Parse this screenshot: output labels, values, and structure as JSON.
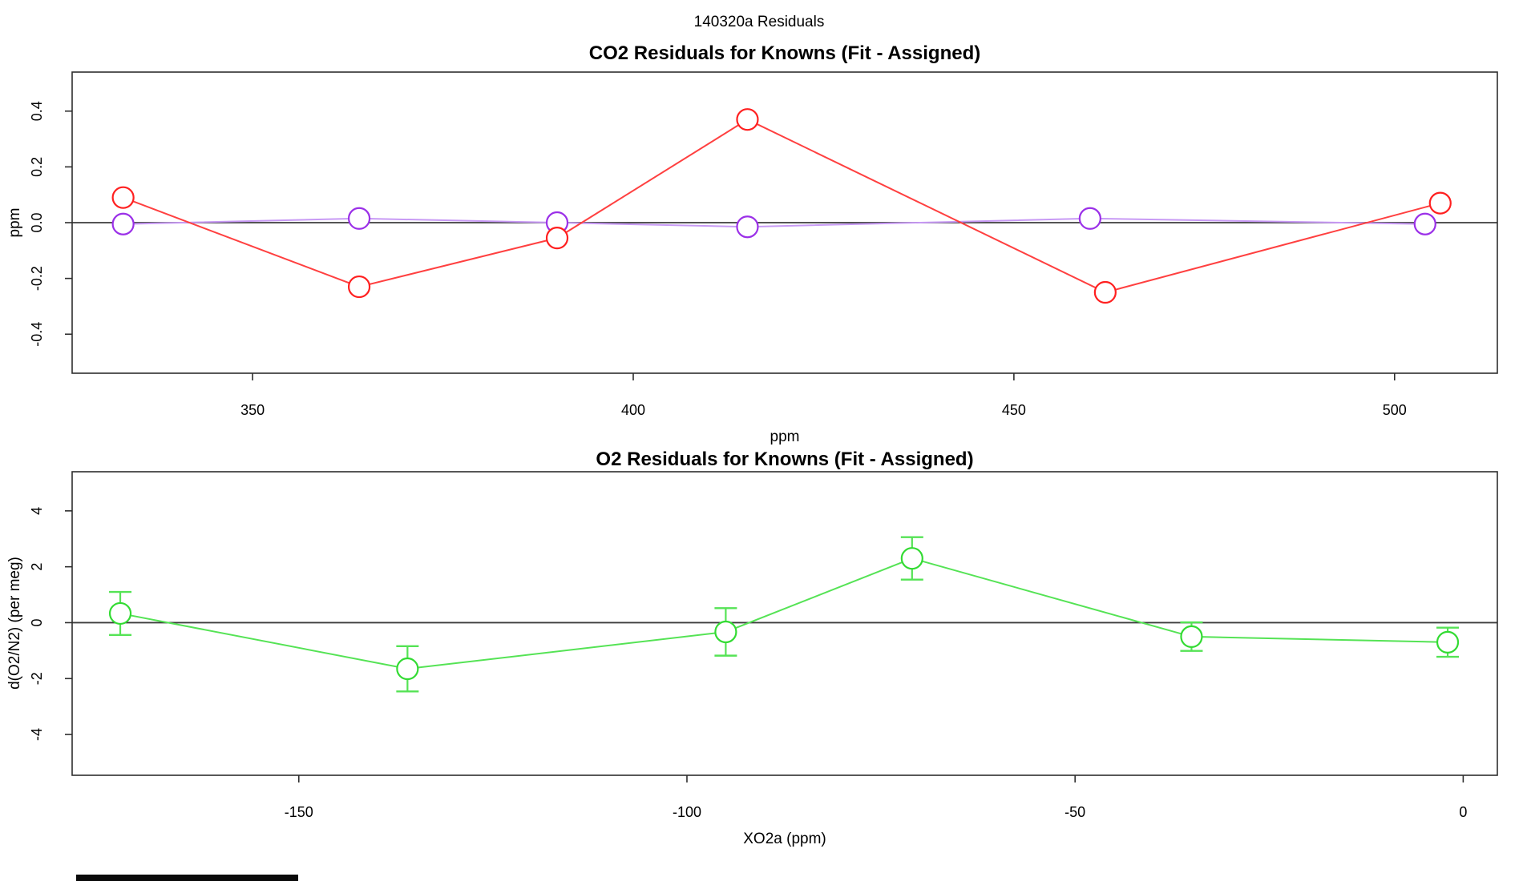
{
  "page": {
    "main_title": "140320a  Residuals",
    "background_color": "#ffffff",
    "frame_color": "#2e2e2e",
    "zero_line_color": "#3c3c3c"
  },
  "chart_data": [
    {
      "type": "line",
      "title": "CO2 Residuals for Knowns (Fit - Assigned)",
      "xlabel": "ppm",
      "ylabel": "ppm",
      "xlim": [
        326.3,
        513.5
      ],
      "ylim": [
        -0.54,
        0.54
      ],
      "xticks": [
        350,
        400,
        450,
        500
      ],
      "xtick_labels": [
        "350",
        "400",
        "450",
        "500"
      ],
      "yticks": [
        -0.4,
        -0.2,
        0.0,
        0.2,
        0.4
      ],
      "ytick_labels": [
        "-0.4",
        "-0.2",
        "0.0",
        "0.2",
        "0.4"
      ],
      "zero_line": true,
      "grid": false,
      "legend": "none",
      "marker": "open-circle",
      "series": [
        {
          "name": "purple",
          "marker_color": "#9b30e8",
          "line_color": "#c89af5",
          "points": [
            [
              333,
              -0.005
            ],
            [
              364,
              0.015
            ],
            [
              390,
              0.0
            ],
            [
              415,
              -0.015
            ],
            [
              460,
              0.015
            ],
            [
              504,
              -0.005
            ]
          ]
        },
        {
          "name": "red",
          "marker_color": "#ff2020",
          "line_color": "#ff4040",
          "points": [
            [
              333,
              0.09
            ],
            [
              364,
              -0.23
            ],
            [
              390,
              -0.055
            ],
            [
              415,
              0.37
            ],
            [
              462,
              -0.25
            ],
            [
              506,
              0.07
            ]
          ]
        }
      ]
    },
    {
      "type": "line",
      "title": "O2 Residuals for Knowns (Fit - Assigned)",
      "xlabel": "XO2a (ppm)",
      "ylabel": "d(O2/N2) (per meg)",
      "xlim": [
        -179.2,
        4.4
      ],
      "ylim": [
        -5.46,
        5.4
      ],
      "xticks": [
        -150,
        -100,
        -50,
        0
      ],
      "xtick_labels": [
        "-150",
        "-100",
        "-50",
        "0"
      ],
      "yticks": [
        -4,
        -2,
        0,
        2,
        4
      ],
      "ytick_labels": [
        "-4",
        "-2",
        "0",
        "2",
        "4"
      ],
      "zero_line": true,
      "grid": false,
      "legend": "none",
      "marker": "open-circle",
      "series": [
        {
          "name": "green",
          "marker_color": "#33db33",
          "line_color": "#55e355",
          "points": [
            [
              -173,
              0.33
            ],
            [
              -136,
              -1.65
            ],
            [
              -95,
              -0.33
            ],
            [
              -71,
              2.3
            ],
            [
              -35,
              -0.5
            ],
            [
              -2,
              -0.7
            ]
          ],
          "yerr": [
            0.77,
            0.81,
            0.85,
            0.76,
            0.51,
            0.52
          ]
        }
      ]
    }
  ]
}
